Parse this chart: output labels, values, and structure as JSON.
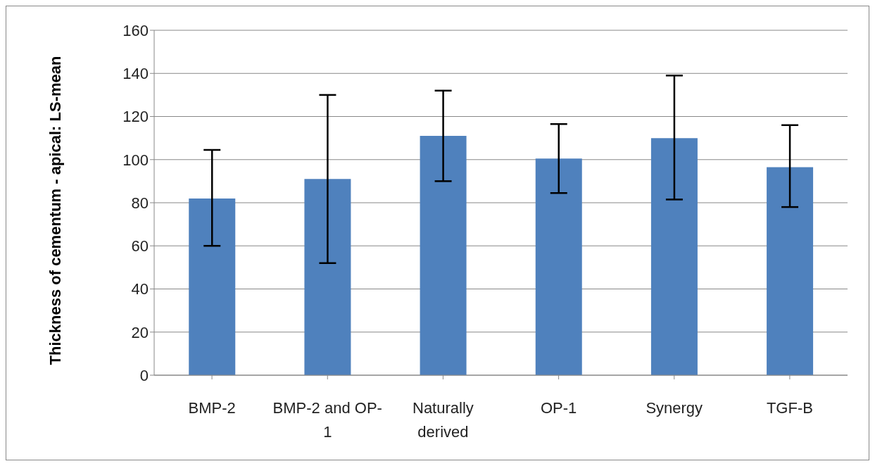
{
  "chart_data": {
    "type": "bar",
    "ylabel": "Thickness of cementum - apical:  LS-mean",
    "categories": [
      "BMP-2",
      "BMP-2 and OP-1",
      "Naturally derived",
      "OP-1",
      "Synergy",
      "TGF-B"
    ],
    "values": [
      82,
      91,
      111,
      100.5,
      110,
      96.5
    ],
    "errors": [
      [
        60,
        104.5
      ],
      [
        52,
        130
      ],
      [
        90,
        132
      ],
      [
        84.5,
        116.5
      ],
      [
        81.5,
        139
      ],
      [
        78,
        116
      ]
    ],
    "color": "#4f81bd",
    "ylim": [
      0,
      160
    ],
    "yticks": [
      0,
      20,
      40,
      60,
      80,
      100,
      120,
      140,
      160
    ],
    "grid": "y"
  }
}
